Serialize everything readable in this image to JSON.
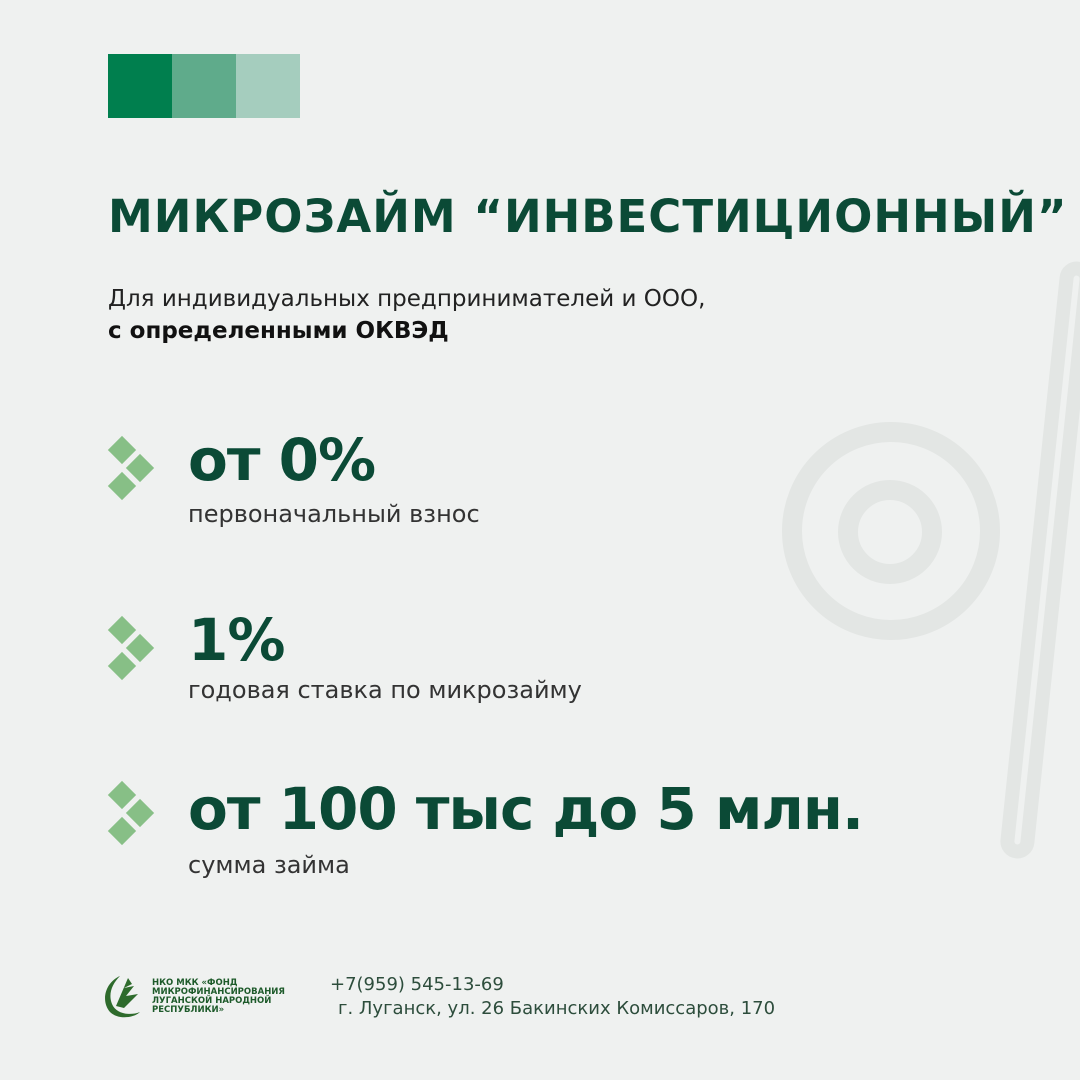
{
  "palette": [
    "#007f4e",
    "#5fab8b",
    "#a5cdbe"
  ],
  "title": "МИКРОЗАЙМ “ИНВЕСТИЦИОННЫЙ”",
  "subtitle": {
    "line1": "Для индивидуальных предпринимателей и ООО,",
    "line2": "с определенными ОКВЭД"
  },
  "items": [
    {
      "value": "от 0%",
      "label": "первоначальный взнос"
    },
    {
      "value": "1%",
      "label": "годовая ставка по микрозайму"
    },
    {
      "value": "от 100 тыс до 5 млн.",
      "label": "сумма займа"
    }
  ],
  "footer": {
    "logo_lines": [
      "НКО МКК «ФОНД",
      "МИКРОФИНАНСИРОВАНИЯ",
      "ЛУГАНСКОЙ НАРОДНОЙ",
      "РЕСПУБЛИКИ»"
    ],
    "phone": "+7(959) 545-13-69",
    "address": "г. Луганск, ул. 26 Бакинских Комиссаров, 170"
  }
}
